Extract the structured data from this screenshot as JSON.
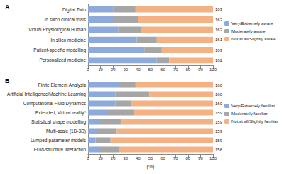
{
  "chart_data": [
    {
      "type": "bar",
      "title": "A",
      "orientation": "horizontal",
      "stacked": true,
      "grid": false,
      "legend": "right",
      "categories": [
        "Digital Twin",
        "In silico clinical trials",
        "Virtual Physiological Human",
        "In silico medicine",
        "Patient-specific modelling",
        "Personalized medicine"
      ],
      "n": [
        163,
        162,
        162,
        161,
        163,
        162
      ],
      "series": [
        {
          "name": "Very/Extremely aware",
          "color": "#8eaadb",
          "values": [
            20,
            21,
            24,
            39,
            45,
            55
          ]
        },
        {
          "name": "Moderately aware",
          "color": "#a6a6a6",
          "values": [
            18,
            19,
            19,
            16,
            14,
            10
          ]
        },
        {
          "name": "Not at all/Slightly aware",
          "color": "#f4b183",
          "values": [
            62,
            60,
            57,
            45,
            41,
            35
          ]
        }
      ],
      "xlim": [
        0,
        100
      ],
      "xticks": [
        0,
        10,
        20,
        30,
        40,
        50,
        60,
        70,
        80,
        90,
        100
      ]
    },
    {
      "type": "bar",
      "title": "B",
      "orientation": "horizontal",
      "stacked": true,
      "grid": false,
      "legend": "right",
      "x_label": "(%)",
      "categories": [
        "Finite Element Analysis",
        "Artificial Intelligence/Machine Learning",
        "Computational Fluid Dynamics",
        "Extended, Virtual reality*",
        "Statistical shape modelling",
        "Multi-scale (1D-3D)",
        "Lumped-parameter models",
        "Fluid-structure interaction"
      ],
      "n": [
        160,
        160,
        160,
        159,
        159,
        159,
        159,
        156
      ],
      "series": [
        {
          "name": "Very/Extremely familiar",
          "color": "#8eaadb",
          "values": [
            25,
            22,
            22,
            15,
            9,
            7,
            6,
            9
          ]
        },
        {
          "name": "Moderately familiar",
          "color": "#a6a6a6",
          "values": [
            13,
            27,
            13,
            22,
            18,
            16,
            12,
            16
          ]
        },
        {
          "name": "Not at all/Slightly familiar",
          "color": "#f4b183",
          "values": [
            62,
            51,
            65,
            63,
            73,
            77,
            82,
            75
          ]
        }
      ],
      "xlim": [
        0,
        100
      ],
      "xticks": [
        0,
        10,
        20,
        30,
        40,
        50,
        60,
        70,
        80,
        90,
        100
      ]
    }
  ]
}
